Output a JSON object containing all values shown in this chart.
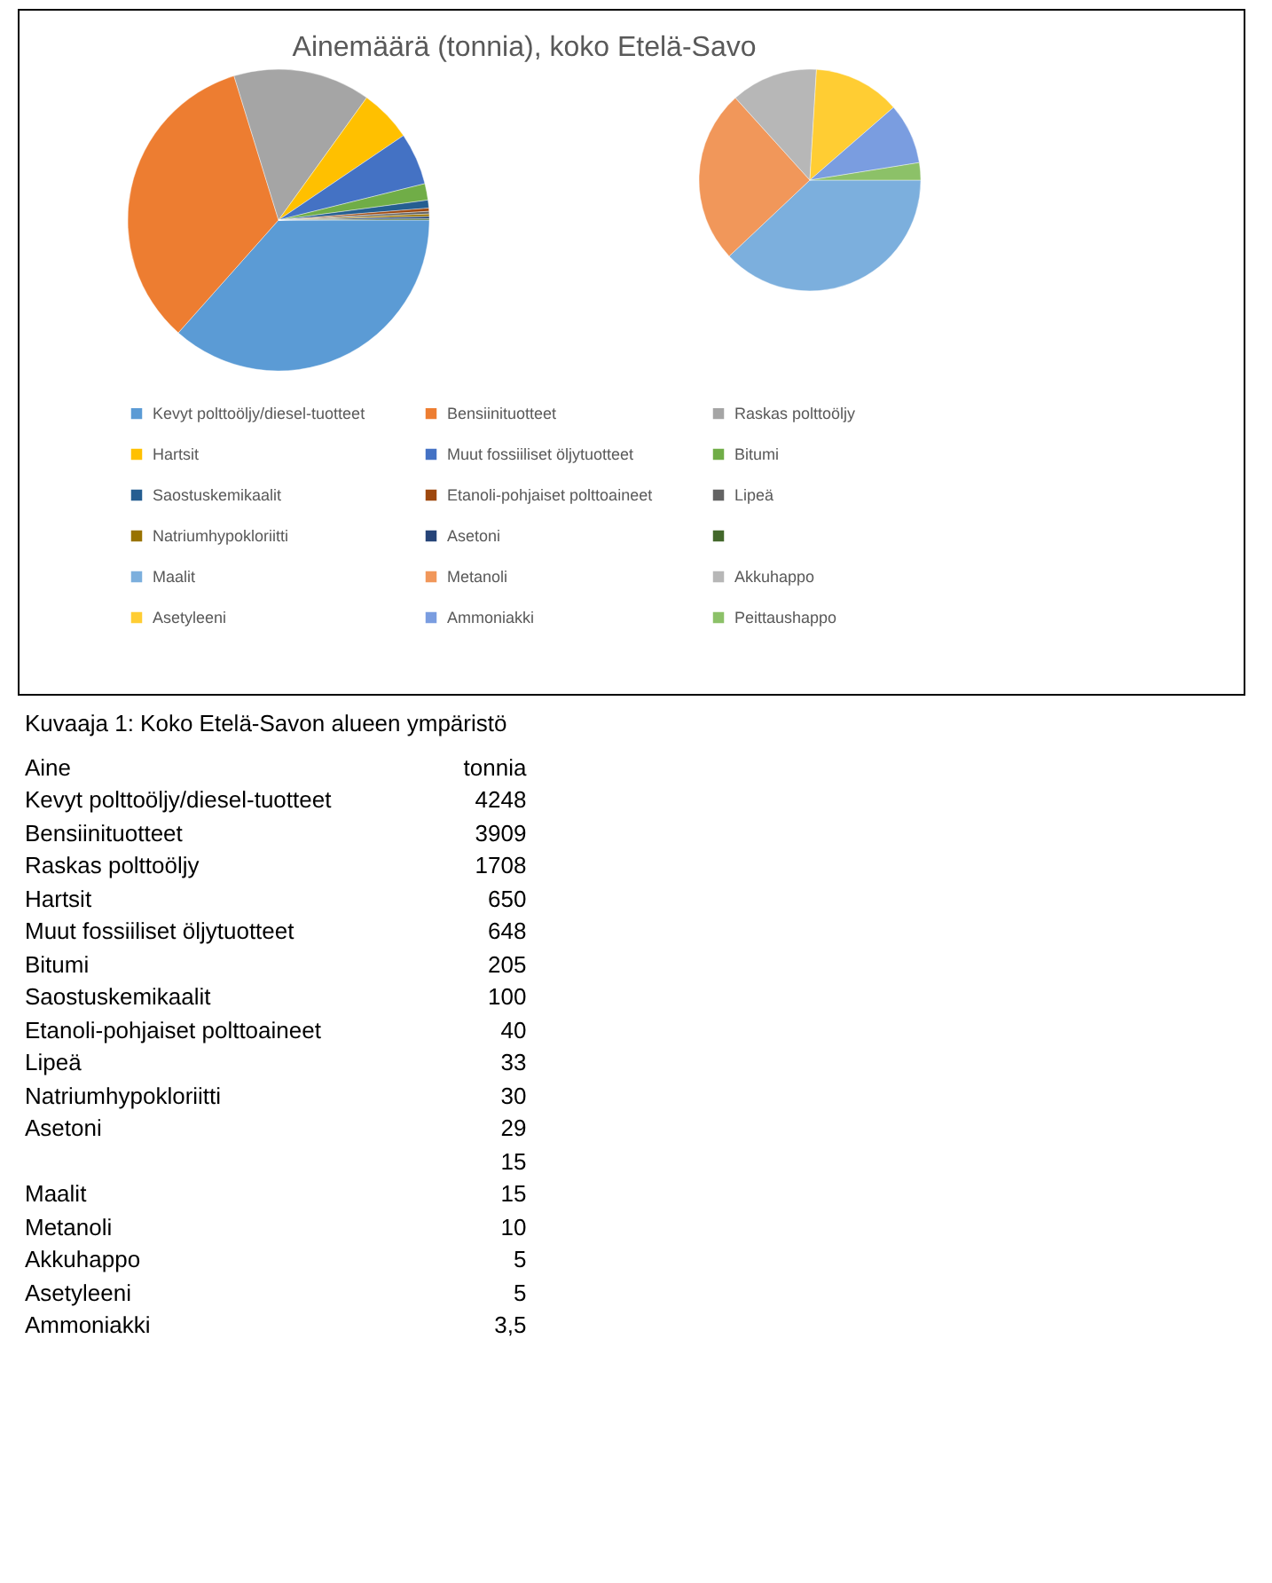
{
  "chart_data": [
    {
      "type": "pie",
      "title": "Ainemäärä (tonnia), koko Etelä-Savo",
      "categories": [
        "Kevyt polttoöljy/diesel-tuotteet",
        "Bensiinituotteet",
        "Raskas polttoöljy",
        "Hartsit",
        "Muut fossiiliset öljytuotteet",
        "Bitumi",
        "Saostuskemikaalit",
        "Etanoli-pohjaiset polttoaineet",
        "Lipeä",
        "Natriumhypokloriitti",
        "Asetoni",
        null
      ],
      "values": [
        36.57,
        33.66,
        14.71,
        5.6,
        5.58,
        1.76,
        0.86,
        0.34,
        0.28,
        0.26,
        0.25,
        0.13
      ],
      "colors": [
        "#5b9bd5",
        "#ed7d31",
        "#a5a5a5",
        "#ffc000",
        "#4472c4",
        "#70ad47",
        "#255e91",
        "#9e480e",
        "#636363",
        "#997300",
        "#264478",
        "#43682b"
      ],
      "legend": "bottom"
    },
    {
      "type": "pie",
      "categories": [
        "Maalit",
        "Metanoli",
        "Akkuhappo",
        "Asetyleeni",
        "Ammoniakki",
        "Peittaushappo"
      ],
      "values": [
        37.97,
        25.32,
        12.66,
        12.66,
        8.86,
        2.53
      ],
      "colors": [
        "#7cafdd",
        "#f1975a",
        "#b7b7b7",
        "#ffcd33",
        "#7a9de0",
        "#8cc168"
      ],
      "legend": "bottom"
    },
    {
      "type": "other",
      "annotations": [
        "Kuvaaja 1: Koko Etelä-Savon alueen ympäristö"
      ],
      "xlabel": "Aine",
      "ylabel": "tonnia",
      "categories": [
        "Kevyt polttoöljy/diesel-tuotteet",
        "Bensiinituotteet",
        "Raskas polttoöljy",
        "Hartsit",
        "Muut fossiiliset öljytuotteet",
        "Bitumi",
        "Saostuskemikaalit",
        "Etanoli-pohjaiset polttoaineet",
        "Lipeä",
        "Natriumhypokloriitti",
        "Asetoni",
        null,
        "Maalit",
        "Metanoli",
        "Akkuhappo",
        "Asetyleeni",
        "Ammoniakki"
      ],
      "value_labels": [
        "4248",
        "3909",
        "1708",
        "650",
        "648",
        "205",
        "100",
        "40",
        "33",
        "30",
        "29",
        "15",
        "15",
        "10",
        "5",
        "5",
        "3,5"
      ]
    }
  ]
}
